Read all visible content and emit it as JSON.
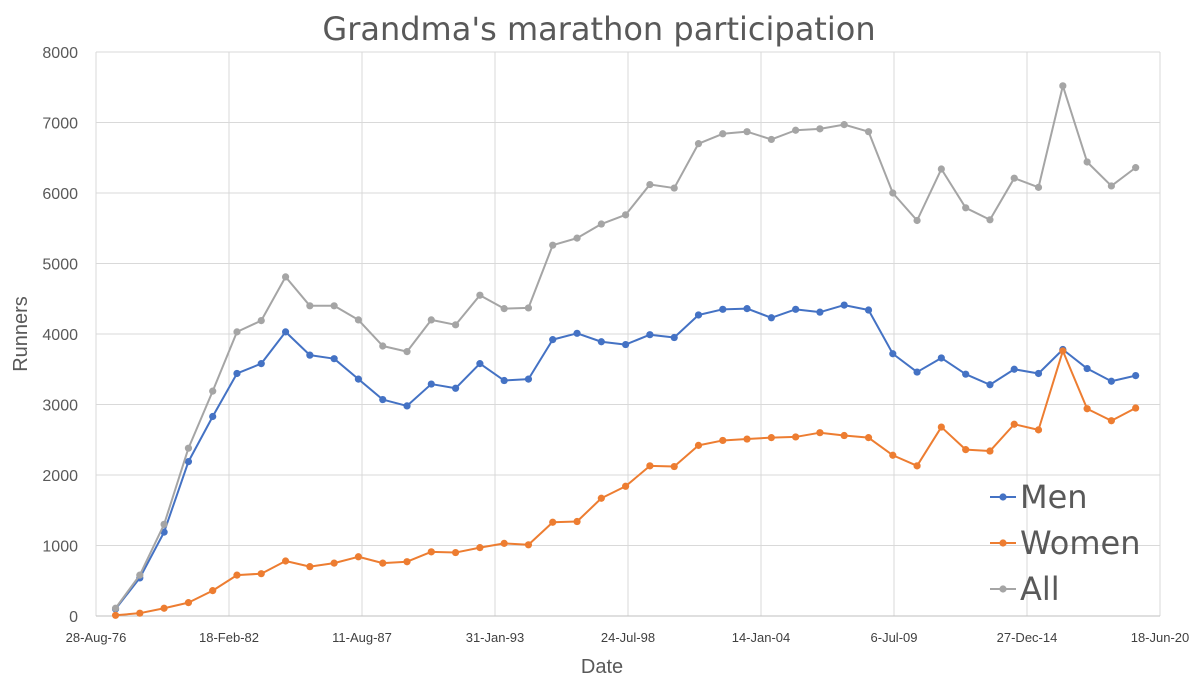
{
  "chart_data": {
    "type": "line",
    "title": "Grandma's marathon participation",
    "xlabel": "Date",
    "ylabel": "Runners",
    "ylim": [
      0,
      8000
    ],
    "yticks": [
      0,
      1000,
      2000,
      3000,
      4000,
      5000,
      6000,
      7000,
      8000
    ],
    "xlim": [
      "1976-08-28",
      "2020-06-18"
    ],
    "xticks": [
      {
        "label": "28-Aug-76",
        "date": "1976-08-28"
      },
      {
        "label": "18-Feb-82",
        "date": "1982-02-18"
      },
      {
        "label": "11-Aug-87",
        "date": "1987-08-11"
      },
      {
        "label": "31-Jan-93",
        "date": "1993-01-31"
      },
      {
        "label": "24-Jul-98",
        "date": "1998-07-24"
      },
      {
        "label": "14-Jan-04",
        "date": "2004-01-14"
      },
      {
        "label": "6-Jul-09",
        "date": "2009-07-06"
      },
      {
        "label": "27-Dec-14",
        "date": "2014-12-27"
      },
      {
        "label": "18-Jun-20",
        "date": "2020-06-18"
      }
    ],
    "grid": true,
    "legend_position": "bottom-right",
    "x": [
      "1977-06-18",
      "1978-06-18",
      "1979-06-18",
      "1980-06-18",
      "1981-06-18",
      "1982-06-18",
      "1983-06-18",
      "1984-06-18",
      "1985-06-18",
      "1986-06-18",
      "1987-06-18",
      "1988-06-18",
      "1989-06-18",
      "1990-06-18",
      "1991-06-18",
      "1992-06-18",
      "1993-06-18",
      "1994-06-18",
      "1995-06-18",
      "1996-06-18",
      "1997-06-18",
      "1998-06-18",
      "1999-06-18",
      "2000-06-18",
      "2001-06-18",
      "2002-06-18",
      "2003-06-18",
      "2004-06-18",
      "2005-06-18",
      "2006-06-18",
      "2007-06-18",
      "2008-06-18",
      "2009-06-18",
      "2010-06-18",
      "2011-06-18",
      "2012-06-18",
      "2013-06-18",
      "2014-06-18",
      "2015-06-18",
      "2016-06-18",
      "2017-06-18",
      "2018-06-18",
      "2019-06-18"
    ],
    "series": [
      {
        "name": "Men",
        "color": "#4472c4",
        "values": [
          100,
          540,
          1190,
          2190,
          2830,
          3440,
          3580,
          4030,
          3700,
          3650,
          3360,
          3070,
          2980,
          3290,
          3230,
          3580,
          3340,
          3360,
          3920,
          4010,
          3890,
          3850,
          3990,
          3950,
          4270,
          4350,
          4360,
          4230,
          4350,
          4310,
          4410,
          4340,
          3720,
          3460,
          3660,
          3430,
          3280,
          3500,
          3440,
          3780,
          3510,
          3330,
          3410
        ]
      },
      {
        "name": "Women",
        "color": "#ed7d31",
        "values": [
          10,
          40,
          110,
          190,
          360,
          580,
          600,
          780,
          700,
          750,
          840,
          750,
          770,
          910,
          900,
          970,
          1030,
          1010,
          1330,
          1340,
          1670,
          1840,
          2130,
          2120,
          2420,
          2490,
          2510,
          2530,
          2540,
          2600,
          2560,
          2530,
          2280,
          2130,
          2680,
          2360,
          2340,
          2720,
          2640,
          3760,
          2940,
          2770,
          2950
        ]
      },
      {
        "name": "All",
        "color": "#a5a5a5",
        "values": [
          110,
          580,
          1300,
          2380,
          3190,
          4030,
          4190,
          4810,
          4400,
          4400,
          4200,
          3830,
          3750,
          4200,
          4130,
          4550,
          4360,
          4370,
          5260,
          5360,
          5560,
          5690,
          6120,
          6070,
          6700,
          6840,
          6870,
          6760,
          6890,
          6910,
          6970,
          6870,
          6000,
          5610,
          6340,
          5790,
          5620,
          6210,
          6080,
          7520,
          6440,
          6100,
          6360
        ]
      }
    ]
  }
}
